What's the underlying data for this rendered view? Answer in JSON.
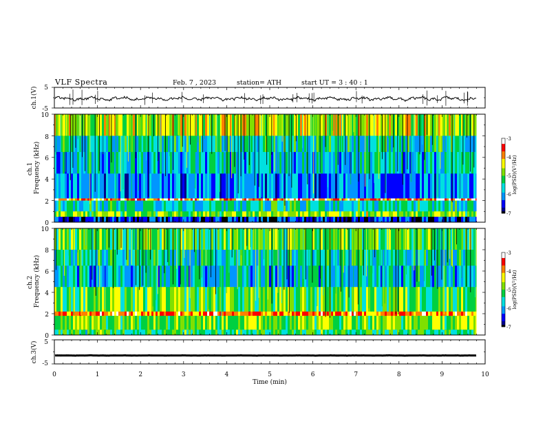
{
  "header": {
    "title": "VLF Spectra",
    "date": "Feb. 7 , 2023",
    "station": "station= ATH",
    "start": "start UT = 3 : 40 : 1"
  },
  "colors": {
    "waveform": "#000000",
    "axis": "#000000",
    "colormap": [
      "#000000",
      "#00008b",
      "#0000ff",
      "#0096ff",
      "#00e0e0",
      "#00d040",
      "#80e000",
      "#ffff00",
      "#ff8000",
      "#ff0000",
      "#ffffff"
    ]
  },
  "chart_data": [
    {
      "type": "line",
      "ylabel": "ch.1(V)",
      "ylim": [
        -5,
        5
      ],
      "yticks": [
        "5",
        "-5"
      ],
      "xlim": [
        0,
        10
      ],
      "trace_level": -0.5,
      "grid": false
    },
    {
      "type": "heatmap",
      "ylabel": "ch.1\nFrequency (kHz)",
      "ylim": [
        0,
        10
      ],
      "yticks": [
        "10",
        "8",
        "6",
        "4",
        "2",
        "0"
      ],
      "xlim": [
        0,
        10
      ],
      "data_end_min": 9.8,
      "colorbar": {
        "label": "log(PSD)(V²/Hz)",
        "range": [
          -7,
          -3
        ],
        "ticks": [
          "-3",
          "-4",
          "-5",
          "-6",
          "-7"
        ]
      },
      "bands": [
        {
          "from": 8,
          "to": 10,
          "level": -4.6
        },
        {
          "from": 6.5,
          "to": 8,
          "level": -5.5
        },
        {
          "from": 4.5,
          "to": 6.5,
          "level": -5.8
        },
        {
          "from": 2.2,
          "to": 4.5,
          "level": -6.2
        },
        {
          "from": 2.0,
          "to": 2.2,
          "level": -3.6
        },
        {
          "from": 1.0,
          "to": 2.0,
          "level": -5.6
        },
        {
          "from": 0.5,
          "to": 1.0,
          "level": -4.8
        },
        {
          "from": 0,
          "to": 0.5,
          "level": -6.6
        }
      ]
    },
    {
      "type": "heatmap",
      "ylabel": "ch.2\nFrequency (kHz)",
      "ylim": [
        0,
        10
      ],
      "yticks": [
        "10",
        "8",
        "6",
        "4",
        "2",
        "0"
      ],
      "xlim": [
        0,
        10
      ],
      "data_end_min": 9.8,
      "colorbar": {
        "label": "log(PSD)(V²/Hz)",
        "range": [
          -7,
          -3
        ],
        "ticks": [
          "-3",
          "-4",
          "-5",
          "-6",
          "-7"
        ]
      },
      "bands": [
        {
          "from": 8,
          "to": 10,
          "level": -5.0
        },
        {
          "from": 6.5,
          "to": 8,
          "level": -5.6
        },
        {
          "from": 4.5,
          "to": 6.5,
          "level": -5.7
        },
        {
          "from": 2.2,
          "to": 4.5,
          "level": -5.0
        },
        {
          "from": 1.8,
          "to": 2.2,
          "level": -3.8
        },
        {
          "from": 0.5,
          "to": 1.8,
          "level": -4.8
        },
        {
          "from": 0,
          "to": 0.5,
          "level": -5.2
        }
      ]
    },
    {
      "type": "line",
      "ylabel": "ch.3(V)",
      "ylim": [
        -5,
        5
      ],
      "yticks": [
        "5",
        "-5"
      ],
      "xlim": [
        0,
        10
      ],
      "trace_level": -1.5,
      "xlabel": "Time (min)",
      "xticks": [
        "0",
        "1",
        "2",
        "3",
        "4",
        "5",
        "6",
        "7",
        "8",
        "9",
        "10"
      ],
      "grid": false
    }
  ]
}
